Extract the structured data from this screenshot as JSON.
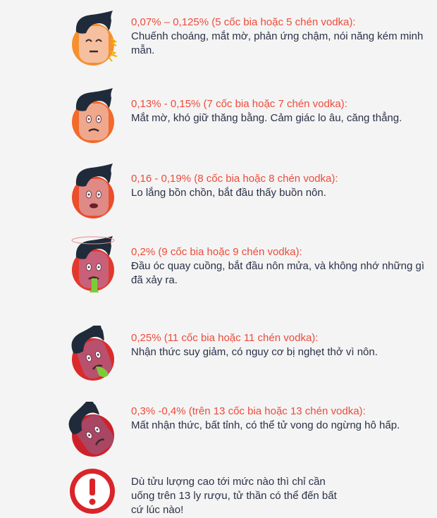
{
  "colors": {
    "title": "#ee4b3b",
    "body": "#2b3148",
    "background": "#f4f4f4"
  },
  "stages": [
    {
      "title": "0,07% – 0,125% (5 cốc bia hoặc 5 chén vodka):",
      "desc": "Chuếnh choáng, mắt mờ, phản ứng chậm, nói năng kém minh mẫn.",
      "icon": "dizzy-face-icon",
      "ring": "#f6902e",
      "face": "#f5bfa0"
    },
    {
      "title": "0,13% - 0,15% (7 cốc bia hoặc 7 chén vodka):",
      "desc": "Mắt mờ, khó giữ thăng bằng. Cảm giác lo âu, căng thẳng.",
      "icon": "anxious-face-icon",
      "ring": "#f26a2c",
      "face": "#f0a88c"
    },
    {
      "title": "0,16 - 0,19% (8 cốc bia hoặc 8 chén vodka):",
      "desc": "Lo lắng bồn chồn, bắt đầu thấy buồn nôn.",
      "icon": "nauseous-face-icon",
      "ring": "#ec4d2a",
      "face": "#e08a86"
    },
    {
      "title": "0,2% (9 cốc bia hoặc 9 chén vodka):",
      "desc": "Đầu óc quay cuồng, bắt đầu nôn mửa, và không nhớ những gì đã xảy ra.",
      "icon": "vomiting-face-icon",
      "ring": "#e3382c",
      "face": "#c9607a"
    },
    {
      "title": "0,25% (11 cốc bia hoặc 11 chén vodka):",
      "desc": "Nhận thức suy giảm, có nguy cơ bị nghẹt thở vì nôn.",
      "icon": "choking-face-icon",
      "ring": "#db2a2a",
      "face": "#b9506e"
    },
    {
      "title": "0,3% -0,4% (trên 13 cốc bia hoặc 13 chén vodka):",
      "desc": "Mất nhận thức, bất tỉnh, có thể tử vong do ngừng hô hấp.",
      "icon": "unconscious-face-icon",
      "ring": "#cf2028",
      "face": "#a84664"
    }
  ],
  "warning": {
    "text": "Dù tửu lượng cao tới mức nào thì chỉ cần uống trên 13 ly rượu, tử thần có thể đến bất cứ lúc nào!",
    "icon": "exclamation-icon",
    "color": "#d9252a"
  }
}
